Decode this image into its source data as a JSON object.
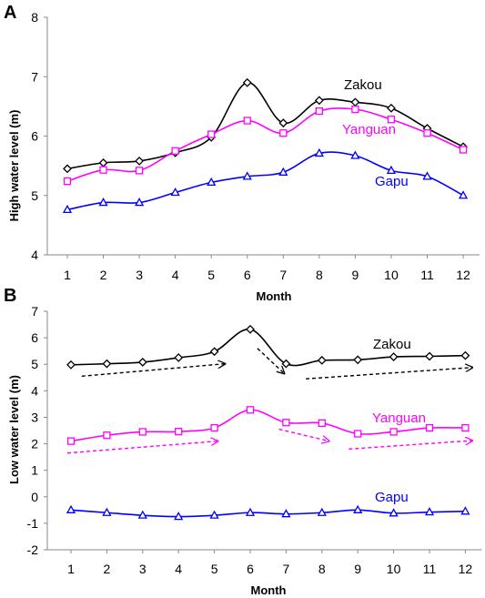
{
  "chart_data": [
    {
      "panel": "A",
      "type": "line",
      "title": "",
      "xlabel": "Month",
      "ylabel": "High water level (m)",
      "categories": [
        "1",
        "2",
        "3",
        "4",
        "5",
        "6",
        "7",
        "8",
        "9",
        "10",
        "11",
        "12"
      ],
      "ylim": [
        4,
        8
      ],
      "yticks": [
        "4",
        "5",
        "6",
        "7",
        "8"
      ],
      "grid": false,
      "legend": "inline labels",
      "series": [
        {
          "name": "Zakou",
          "color": "#000000",
          "marker": "diamond",
          "values": [
            5.45,
            5.55,
            5.58,
            5.72,
            5.98,
            6.9,
            6.22,
            6.6,
            6.57,
            6.47,
            6.13,
            5.82
          ]
        },
        {
          "name": "Yanguan",
          "color": "#ff00ff",
          "marker": "square",
          "values": [
            5.24,
            5.43,
            5.42,
            5.75,
            6.03,
            6.26,
            6.05,
            6.42,
            6.45,
            6.28,
            6.05,
            5.77
          ]
        },
        {
          "name": "Gapu",
          "color": "#0000ff",
          "marker": "triangle",
          "values": [
            4.76,
            4.88,
            4.88,
            5.05,
            5.22,
            5.32,
            5.39,
            5.71,
            5.67,
            5.42,
            5.32,
            5.0
          ]
        }
      ]
    },
    {
      "panel": "B",
      "type": "line",
      "title": "",
      "xlabel": "Month",
      "ylabel": "Low water level (m)",
      "categories": [
        "1",
        "2",
        "3",
        "4",
        "5",
        "6",
        "7",
        "8",
        "9",
        "10",
        "11",
        "12"
      ],
      "ylim": [
        -2,
        7
      ],
      "yticks": [
        "-2",
        "-1",
        "0",
        "1",
        "2",
        "3",
        "4",
        "5",
        "6",
        "7"
      ],
      "grid": false,
      "legend": "inline labels",
      "series": [
        {
          "name": "Zakou",
          "color": "#000000",
          "marker": "diamond",
          "values": [
            4.98,
            5.02,
            5.08,
            5.25,
            5.48,
            6.32,
            5.02,
            5.15,
            5.17,
            5.28,
            5.3,
            5.33
          ]
        },
        {
          "name": "Yanguan",
          "color": "#ff00ff",
          "marker": "square",
          "values": [
            2.1,
            2.32,
            2.45,
            2.46,
            2.6,
            3.28,
            2.8,
            2.78,
            2.38,
            2.45,
            2.6,
            2.6
          ]
        },
        {
          "name": "Gapu",
          "color": "#0000ff",
          "marker": "triangle",
          "values": [
            -0.5,
            -0.6,
            -0.7,
            -0.75,
            -0.7,
            -0.6,
            -0.65,
            -0.6,
            -0.5,
            -0.62,
            -0.58,
            -0.55
          ]
        }
      ],
      "trend_arrows": [
        {
          "series": "Zakou",
          "color": "#000000",
          "from": [
            1.3,
            4.55
          ],
          "to": [
            5.3,
            5.02
          ]
        },
        {
          "series": "Zakou",
          "color": "#000000",
          "from": [
            6.2,
            5.6
          ],
          "to": [
            6.95,
            4.65
          ]
        },
        {
          "series": "Zakou",
          "color": "#000000",
          "from": [
            7.55,
            4.45
          ],
          "to": [
            12.2,
            4.88
          ]
        },
        {
          "series": "Yanguan",
          "color": "#ff00ff",
          "from": [
            0.9,
            1.65
          ],
          "to": [
            5.1,
            2.1
          ]
        },
        {
          "series": "Yanguan",
          "color": "#ff00ff",
          "from": [
            6.8,
            2.55
          ],
          "to": [
            8.2,
            2.1
          ]
        },
        {
          "series": "Yanguan",
          "color": "#ff00ff",
          "from": [
            8.75,
            1.8
          ],
          "to": [
            12.2,
            2.12
          ]
        }
      ]
    }
  ]
}
